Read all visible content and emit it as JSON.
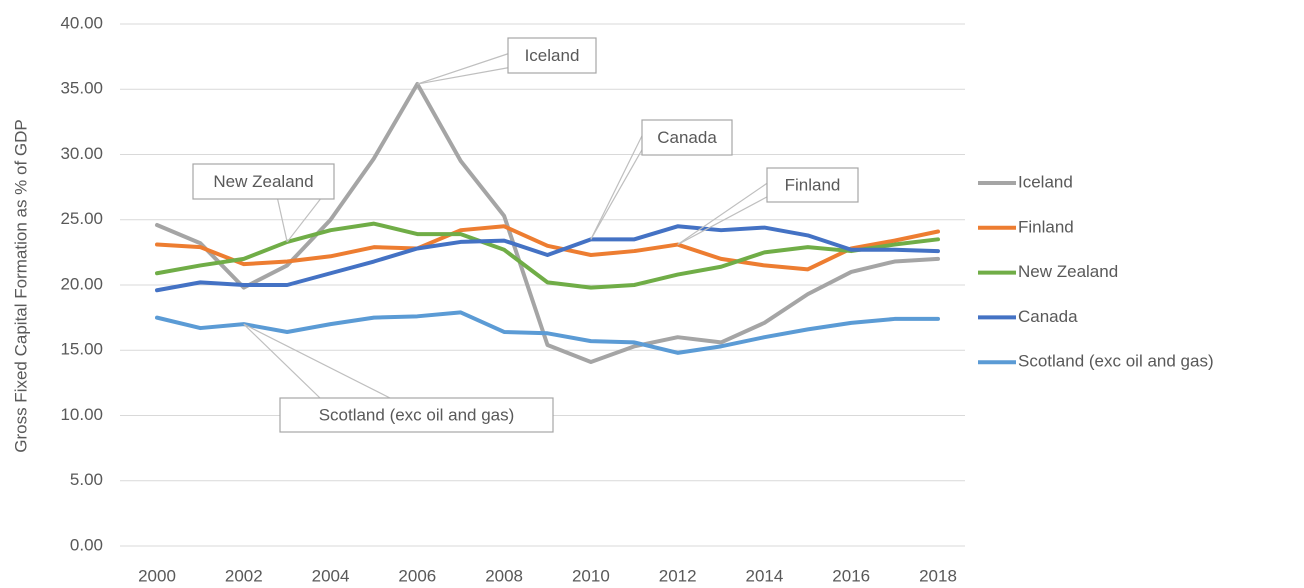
{
  "chart_data": {
    "type": "line",
    "y_label": "Gross Fixed Capital Formation as % of GDP",
    "x": [
      2000,
      2001,
      2002,
      2003,
      2004,
      2005,
      2006,
      2007,
      2008,
      2009,
      2010,
      2011,
      2012,
      2013,
      2014,
      2015,
      2016,
      2017,
      2018
    ],
    "xlim": [
      2000,
      2018
    ],
    "xticks": [
      2000,
      2002,
      2004,
      2006,
      2008,
      2010,
      2012,
      2014,
      2016,
      2018
    ],
    "ylim": [
      0,
      40
    ],
    "yticks": [
      {
        "value": 0,
        "label": "0.00"
      },
      {
        "value": 5,
        "label": "5.00"
      },
      {
        "value": 10,
        "label": "10.00"
      },
      {
        "value": 15,
        "label": "15.00"
      },
      {
        "value": 20,
        "label": "20.00"
      },
      {
        "value": 25,
        "label": "25.00"
      },
      {
        "value": 30,
        "label": "30.00"
      },
      {
        "value": 35,
        "label": "35.00"
      },
      {
        "value": 40,
        "label": "40.00"
      }
    ],
    "grid": true,
    "legend": "right",
    "series": [
      {
        "name": "Iceland",
        "color": "#a5a5a5",
        "values": [
          24.6,
          23.2,
          19.8,
          21.5,
          25.0,
          29.7,
          35.4,
          29.5,
          25.3,
          15.4,
          14.1,
          15.3,
          16.0,
          15.6,
          17.1,
          19.3,
          21.0,
          21.8,
          22.0
        ]
      },
      {
        "name": "Finland",
        "color": "#ed7d31",
        "values": [
          23.1,
          22.9,
          21.6,
          21.8,
          22.2,
          22.9,
          22.8,
          24.2,
          24.5,
          23.0,
          22.3,
          22.6,
          23.1,
          22.0,
          21.5,
          21.2,
          22.8,
          23.4,
          24.1
        ]
      },
      {
        "name": "New Zealand",
        "color": "#70ad47",
        "values": [
          20.9,
          21.5,
          22.0,
          23.3,
          24.2,
          24.7,
          23.9,
          23.9,
          22.7,
          20.2,
          19.8,
          20.0,
          20.8,
          21.4,
          22.5,
          22.9,
          22.6,
          23.1,
          23.5
        ]
      },
      {
        "name": "Canada",
        "color": "#4472c4",
        "values": [
          19.6,
          20.2,
          20.0,
          20.0,
          20.9,
          21.8,
          22.8,
          23.3,
          23.4,
          22.3,
          23.5,
          23.5,
          24.5,
          24.2,
          24.4,
          23.8,
          22.7,
          22.7,
          22.6
        ]
      },
      {
        "name": "Scotland (exc oil and gas)",
        "color": "#5b9bd5",
        "values": [
          17.5,
          16.7,
          17.0,
          16.4,
          17.0,
          17.5,
          17.6,
          17.9,
          16.4,
          16.3,
          15.7,
          15.6,
          14.8,
          15.3,
          16.0,
          16.6,
          17.1,
          17.4,
          17.4
        ]
      }
    ],
    "annotations": [
      "Iceland",
      "Canada",
      "Finland",
      "New Zealand",
      "Scotland (exc oil and gas)"
    ]
  }
}
